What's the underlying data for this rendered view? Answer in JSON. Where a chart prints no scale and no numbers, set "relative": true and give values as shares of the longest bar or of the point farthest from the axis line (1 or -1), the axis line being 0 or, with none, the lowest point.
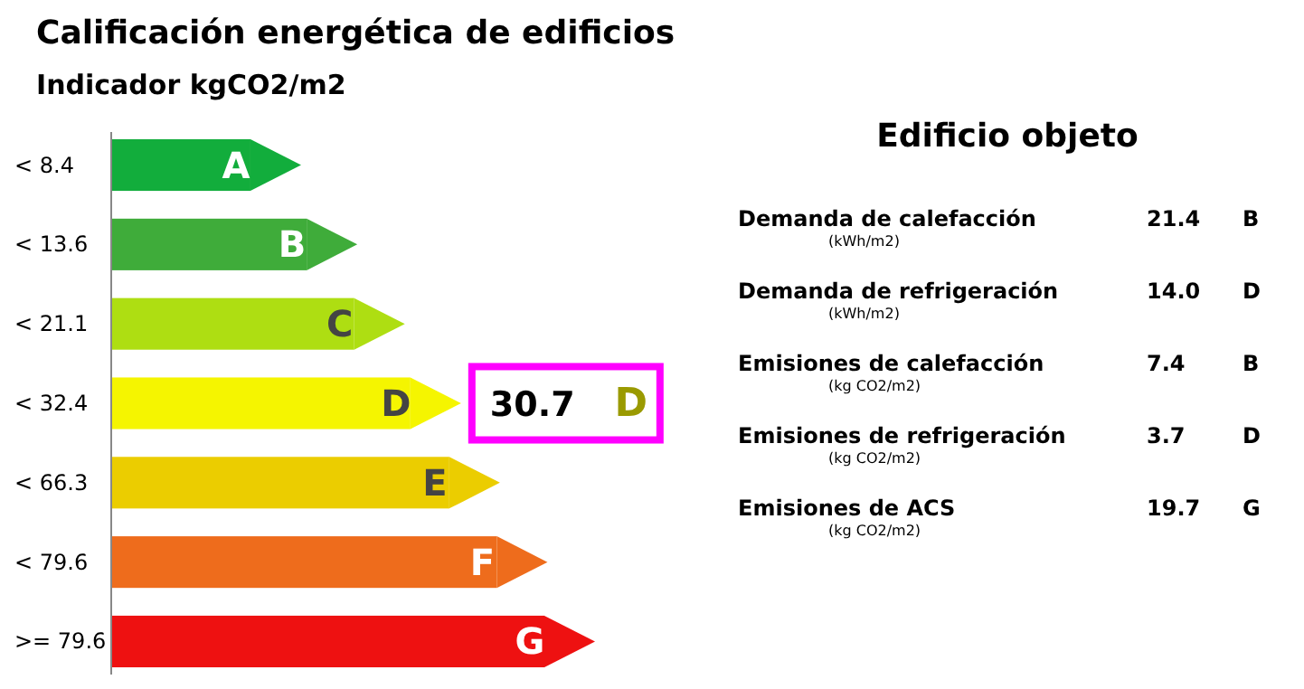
{
  "chart_data": [
    {
      "type": "bar",
      "orientation": "horizontal",
      "relative": true,
      "title": "Calificación energética de edificios",
      "subtitle": "Indicador kgCO2/m2",
      "categories": [
        "< 8.4",
        "< 13.6",
        "< 21.1",
        "< 32.4",
        "< 66.3",
        "< 79.6",
        ">= 79.6"
      ],
      "values": [
        0.32,
        0.45,
        0.56,
        0.69,
        0.78,
        0.89,
        1
      ],
      "colors": [
        "#12ad3c",
        "#3fac3a",
        "#aede12",
        "#f5f500",
        "#ebcd00",
        "#ee6c1c",
        "#ee1111"
      ],
      "annotations": [
        "A",
        "B",
        "C",
        "D",
        "E",
        "F",
        "G",
        "30.7 D"
      ]
    },
    {
      "type": "other",
      "title": "Edificio objeto",
      "annotations": [
        "Demanda de calefacción",
        "(kWh/m2)",
        "21.4",
        "B",
        "Demanda de refrigeración",
        "(kWh/m2)",
        "14.0",
        "D",
        "Emisiones de calefacción",
        "(kg CO2/m2)",
        "7.4",
        "B",
        "Emisiones de refrigeración",
        "(kg CO2/m2)",
        "3.7",
        "D",
        "Emisiones de ACS",
        "(kg CO2/m2)",
        "19.7",
        "G"
      ]
    }
  ]
}
